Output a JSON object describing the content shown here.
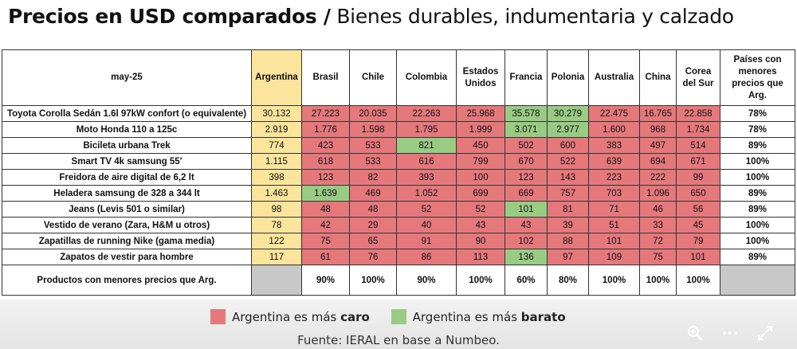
{
  "title": {
    "bold": "Precios en USD comparados /",
    "light": " Bienes durables, indumentaria y calzado"
  },
  "chart_data": {
    "type": "table",
    "period": "may-25",
    "columns": [
      "Argentina",
      "Brasil",
      "Chile",
      "Colombia",
      "Estados Unidos",
      "Francia",
      "Polonia",
      "Australia",
      "China",
      "Corea del Sur"
    ],
    "share_header": "Países con menores precios que Arg.",
    "rows": [
      {
        "product": "Toyota Corolla Sedán 1.6l 97kW confort (o equivalente)",
        "values": [
          "30.132",
          "27.223",
          "20.035",
          "22.263",
          "25.968",
          "35.578",
          "30.279",
          "22.475",
          "16.765",
          "22.858"
        ],
        "cheaper_than_arg": [
          true,
          true,
          true,
          true,
          false,
          false,
          true,
          true,
          true
        ],
        "share": "78%"
      },
      {
        "product": "Moto Honda 110 a 125c",
        "values": [
          "2.919",
          "1.776",
          "1.598",
          "1.795",
          "1.999",
          "3.071",
          "2.977",
          "1.600",
          "968",
          "1.734"
        ],
        "cheaper_than_arg": [
          true,
          true,
          true,
          true,
          false,
          false,
          true,
          true,
          true
        ],
        "share": "78%"
      },
      {
        "product": "Bicileta urbana Trek",
        "values": [
          "774",
          "423",
          "533",
          "821",
          "450",
          "502",
          "600",
          "383",
          "497",
          "514"
        ],
        "cheaper_than_arg": [
          true,
          true,
          false,
          true,
          true,
          true,
          true,
          true,
          true
        ],
        "share": "89%"
      },
      {
        "product": "Smart TV 4k samsung 55'",
        "values": [
          "1.115",
          "618",
          "533",
          "616",
          "799",
          "670",
          "522",
          "639",
          "694",
          "671"
        ],
        "cheaper_than_arg": [
          true,
          true,
          true,
          true,
          true,
          true,
          true,
          true,
          true
        ],
        "share": "100%"
      },
      {
        "product": "Freidora de aire digital de 6,2 lt",
        "values": [
          "398",
          "123",
          "82",
          "393",
          "100",
          "123",
          "143",
          "223",
          "222",
          "99"
        ],
        "cheaper_than_arg": [
          true,
          true,
          true,
          true,
          true,
          true,
          true,
          true,
          true
        ],
        "share": "100%"
      },
      {
        "product": "Heladera samsung de 328 a 344 lt",
        "values": [
          "1.463",
          "1.639",
          "469",
          "1.052",
          "699",
          "669",
          "757",
          "703",
          "1.096",
          "650"
        ],
        "cheaper_than_arg": [
          false,
          true,
          true,
          true,
          true,
          true,
          true,
          true,
          true
        ],
        "share": "89%"
      },
      {
        "product": "Jeans (Levis 501 o similar)",
        "values": [
          "98",
          "48",
          "48",
          "52",
          "52",
          "101",
          "81",
          "71",
          "46",
          "56"
        ],
        "cheaper_than_arg": [
          true,
          true,
          true,
          true,
          false,
          true,
          true,
          true,
          true
        ],
        "share": "89%"
      },
      {
        "product": "Vestido de verano (Zara, H&M u otros)",
        "values": [
          "78",
          "42",
          "29",
          "40",
          "43",
          "43",
          "39",
          "51",
          "33",
          "45"
        ],
        "cheaper_than_arg": [
          true,
          true,
          true,
          true,
          true,
          true,
          true,
          true,
          true
        ],
        "share": "100%"
      },
      {
        "product": "Zapatillas de running Nike (gama media)",
        "values": [
          "122",
          "75",
          "65",
          "91",
          "90",
          "102",
          "88",
          "101",
          "72",
          "79"
        ],
        "cheaper_than_arg": [
          true,
          true,
          true,
          true,
          true,
          true,
          true,
          true,
          true
        ],
        "share": "100%"
      },
      {
        "product": "Zapatos de vestir para hombre",
        "values": [
          "117",
          "61",
          "76",
          "86",
          "113",
          "136",
          "97",
          "109",
          "75",
          "101"
        ],
        "cheaper_than_arg": [
          true,
          true,
          true,
          true,
          false,
          true,
          true,
          true,
          true
        ],
        "share": "89%"
      }
    ],
    "summary": {
      "label": "Productos con menores precios que Arg.",
      "values": [
        "90%",
        "100%",
        "90%",
        "100%",
        "60%",
        "80%",
        "100%",
        "100%",
        "100%"
      ]
    }
  },
  "colors": {
    "argentina_col": "#fbe49c",
    "mas_caro": "#e5787b",
    "mas_barato": "#99cb84",
    "empty": "#c8c8c8"
  },
  "legend": {
    "caro_prefix": "Argentina es más ",
    "caro_bold": "caro",
    "barato_prefix": "Argentina es más ",
    "barato_bold": "barato"
  },
  "source": "Fuente: IERAL en base a Numbeo.",
  "toolbar": {
    "zoom_icon": "zoom-in-icon",
    "more_icon": "more-options-icon",
    "expand_icon": "fullscreen-icon"
  }
}
